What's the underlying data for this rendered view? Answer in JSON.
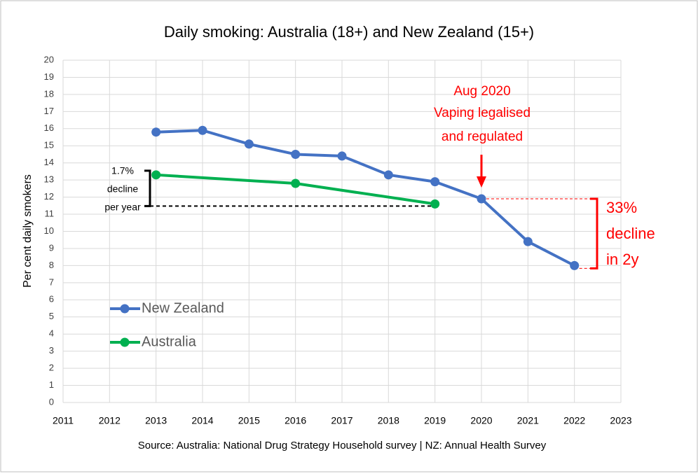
{
  "chart_data": {
    "type": "line",
    "title": "Daily smoking: Australia (18+) and New Zealand (15+)",
    "y_label": "Per cent daily smokers",
    "source": "Source: Australia: National Drug Strategy Household survey | NZ: Annual Health Survey",
    "xlim": [
      2011,
      2023
    ],
    "xticks": [
      2011,
      2012,
      2013,
      2014,
      2015,
      2016,
      2017,
      2018,
      2019,
      2020,
      2021,
      2022,
      2023
    ],
    "ylim": [
      0,
      20
    ],
    "yticks": [
      0,
      1,
      2,
      3,
      4,
      5,
      6,
      7,
      8,
      9,
      10,
      11,
      12,
      13,
      14,
      15,
      16,
      17,
      18,
      19,
      20
    ],
    "grid": true,
    "series": [
      {
        "name": "New Zealand",
        "color": "#4472c4",
        "x": [
          2013,
          2014,
          2015,
          2016,
          2017,
          2018,
          2019,
          2020,
          2021,
          2022
        ],
        "values": [
          15.8,
          15.9,
          15.1,
          14.5,
          14.4,
          13.3,
          12.9,
          11.9,
          9.4,
          8.0
        ]
      },
      {
        "name": "Australia",
        "color": "#00b050",
        "x": [
          2013,
          2016,
          2019
        ],
        "values": [
          13.3,
          12.8,
          11.6
        ]
      }
    ],
    "annotations": [
      {
        "lines": [
          "Aug 2020",
          "Vaping legalised",
          "and regulated"
        ],
        "color": "#ff0000"
      },
      {
        "lines": [
          "1.7%",
          "decline",
          "per year"
        ],
        "color": "#000000"
      },
      {
        "lines": [
          "33%",
          "decline",
          "in 2y"
        ],
        "color": "#ff0000"
      }
    ]
  }
}
